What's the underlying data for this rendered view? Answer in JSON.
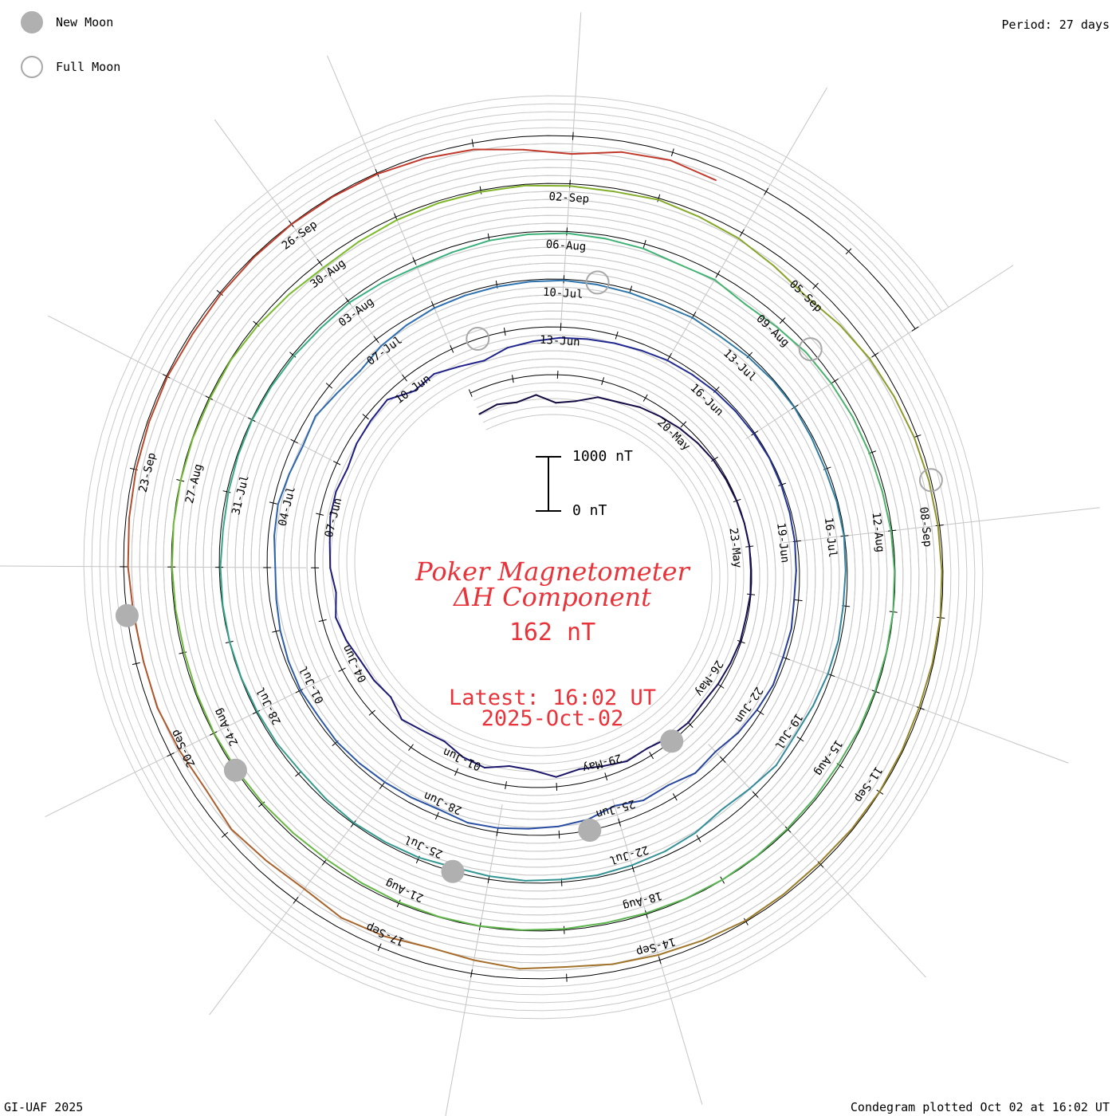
{
  "header": {
    "period": "Period: 27 days"
  },
  "legend": {
    "new_moon": {
      "label": "New Moon",
      "color": "#b0b0b0"
    },
    "full_moon": {
      "label": "Full Moon",
      "color": "#a8a8a8"
    }
  },
  "center": {
    "title_line1": "Poker Magnetometer",
    "title_line2": "ΔH Component",
    "current_value": "162 nT",
    "latest_line1": "Latest: 16:02 UT",
    "latest_line2": "2025-Oct-02",
    "text_color": "#e8333a"
  },
  "footer": {
    "credit": "GI-UAF 2025",
    "plotted": "Condegram plotted Oct 02 at 16:02 UT"
  },
  "chart_data": {
    "type": "line",
    "title": "Poker Magnetometer ΔH Component",
    "period_days": 27,
    "scale_bar": {
      "top_label": "1000 nT",
      "bottom_label": "0 nT",
      "range_nT": [
        0,
        1000
      ]
    },
    "spiral_start_date": "2025-05-15",
    "spiral_end_date": "2025-10-02",
    "rotations": [
      {
        "color": "#12083a",
        "dates": [
          "20-May",
          "23-May",
          "26-May",
          "29-May",
          "01-Jun",
          "04-Jun",
          "07-Jun"
        ]
      },
      {
        "color": "#1f1f8a",
        "dates": [
          "10-Jun",
          "13-Jun",
          "16-Jun",
          "19-Jun",
          "22-Jun",
          "25-Jun",
          "28-Jun",
          "01-Jul",
          "04-Jul"
        ]
      },
      {
        "color": "#2e6eb2",
        "dates": [
          "07-Jul",
          "10-Jul",
          "13-Jul",
          "16-Jul",
          "19-Jul",
          "22-Jul",
          "25-Jul",
          "28-Jul",
          "31-Jul"
        ]
      },
      {
        "color": "#38b07e",
        "dates": [
          "03-Aug",
          "06-Aug",
          "09-Aug",
          "12-Aug",
          "15-Aug",
          "18-Aug",
          "21-Aug",
          "24-Aug",
          "27-Aug"
        ]
      },
      {
        "color": "#7cbb2a",
        "dates": [
          "30-Aug",
          "02-Sep",
          "05-Sep",
          "08-Sep",
          "11-Sep",
          "14-Sep",
          "17-Sep",
          "20-Sep",
          "23-Sep"
        ]
      },
      {
        "color": "#c0392b",
        "dates": [
          "26-Sep"
        ]
      }
    ],
    "new_moon_dates": [
      "2025-05-27",
      "2025-06-25",
      "2025-07-24",
      "2025-08-23",
      "2025-09-21"
    ],
    "full_moon_dates": [
      "2025-06-11",
      "2025-07-10",
      "2025-08-09",
      "2025-09-07"
    ],
    "series": [
      {
        "name": "ΔH (nT)",
        "time_unit": "days since 2025-05-15",
        "points": [
          [
            0,
            -420
          ],
          [
            0.5,
            -380
          ],
          [
            1,
            -440
          ],
          [
            1.5,
            -360
          ],
          [
            2,
            -520
          ],
          [
            2.5,
            -460
          ],
          [
            3,
            -310
          ],
          [
            3.5,
            -280
          ],
          [
            4,
            -200
          ],
          [
            4.5,
            -150
          ],
          [
            5,
            -100
          ],
          [
            5.5,
            -60
          ],
          [
            6,
            -30
          ],
          [
            6.5,
            -20
          ],
          [
            7,
            -10
          ],
          [
            7.5,
            -5
          ],
          [
            8,
            0
          ],
          [
            8.5,
            -15
          ],
          [
            9,
            -10
          ],
          [
            9.5,
            -30
          ],
          [
            10,
            -20
          ],
          [
            10.5,
            -40
          ],
          [
            11,
            -60
          ],
          [
            11.5,
            -90
          ],
          [
            12,
            -50
          ],
          [
            12.5,
            -80
          ],
          [
            13,
            -150
          ],
          [
            13.5,
            -120
          ],
          [
            14,
            -200
          ],
          [
            14.5,
            -260
          ],
          [
            15,
            -180
          ],
          [
            15.5,
            -320
          ],
          [
            16,
            -360
          ],
          [
            16.5,
            -240
          ],
          [
            17,
            -300
          ],
          [
            17.5,
            -420
          ],
          [
            18,
            -380
          ],
          [
            18.5,
            -300
          ],
          [
            19,
            -450
          ],
          [
            19.5,
            -400
          ],
          [
            20,
            -380
          ],
          [
            20.5,
            -300
          ],
          [
            21,
            -250
          ],
          [
            21.5,
            -350
          ],
          [
            22,
            -280
          ],
          [
            22.5,
            -260
          ],
          [
            23,
            -200
          ],
          [
            23.5,
            -180
          ],
          [
            24,
            -220
          ],
          [
            24.5,
            -150
          ],
          [
            25,
            -120
          ],
          [
            25.5,
            -90
          ],
          [
            26,
            -300
          ],
          [
            26.5,
            -250
          ],
          [
            27,
            -350
          ],
          [
            27.5,
            -420
          ],
          [
            28,
            -300
          ],
          [
            28.5,
            -250
          ],
          [
            29,
            -200
          ],
          [
            29.5,
            -180
          ],
          [
            30,
            -150
          ],
          [
            30.5,
            -120
          ],
          [
            31,
            -80
          ],
          [
            31.5,
            -60
          ],
          [
            32,
            -40
          ],
          [
            32.5,
            -30
          ],
          [
            33,
            -20
          ],
          [
            33.5,
            -10
          ],
          [
            34,
            -20
          ],
          [
            34.5,
            -30
          ],
          [
            35,
            -40
          ],
          [
            35.5,
            -60
          ],
          [
            36,
            -80
          ],
          [
            36.5,
            -50
          ],
          [
            37,
            -60
          ],
          [
            37.5,
            -40
          ],
          [
            38,
            -80
          ],
          [
            38.5,
            -120
          ],
          [
            39,
            -200
          ],
          [
            39.5,
            -150
          ],
          [
            40,
            -250
          ],
          [
            40.5,
            -220
          ],
          [
            41,
            -320
          ],
          [
            41.5,
            -200
          ],
          [
            42,
            -150
          ],
          [
            42.5,
            -120
          ],
          [
            43,
            -80
          ],
          [
            43.5,
            -60
          ],
          [
            44,
            -120
          ],
          [
            44.5,
            -100
          ],
          [
            45,
            -80
          ],
          [
            45.5,
            -60
          ],
          [
            46,
            -40
          ],
          [
            46.5,
            -60
          ],
          [
            47,
            -30
          ],
          [
            47.5,
            -50
          ],
          [
            48,
            -80
          ],
          [
            48.5,
            -120
          ],
          [
            49,
            -150
          ],
          [
            49.5,
            -110
          ],
          [
            50,
            -90
          ],
          [
            50.5,
            -140
          ],
          [
            51,
            -180
          ],
          [
            51.5,
            -120
          ],
          [
            52,
            -200
          ],
          [
            52.5,
            -240
          ],
          [
            53,
            -150
          ],
          [
            53.5,
            -100
          ],
          [
            54,
            -60
          ],
          [
            54.5,
            -50
          ],
          [
            55,
            -40
          ],
          [
            55.5,
            -30
          ],
          [
            56,
            -20
          ],
          [
            56.5,
            -40
          ],
          [
            57,
            -60
          ],
          [
            57.5,
            -80
          ],
          [
            58,
            -50
          ],
          [
            58.5,
            -70
          ],
          [
            59,
            -40
          ],
          [
            59.5,
            -20
          ],
          [
            60,
            -10
          ],
          [
            60.5,
            -30
          ],
          [
            61,
            -40
          ],
          [
            61.5,
            -20
          ],
          [
            62,
            -10
          ],
          [
            62.5,
            -30
          ],
          [
            63,
            -50
          ],
          [
            63.5,
            -40
          ],
          [
            64,
            -60
          ],
          [
            64.5,
            -90
          ],
          [
            65,
            -120
          ],
          [
            65.5,
            -80
          ],
          [
            66,
            -150
          ],
          [
            66.5,
            -200
          ],
          [
            67,
            -120
          ],
          [
            67.5,
            -80
          ],
          [
            68,
            -60
          ],
          [
            68.5,
            -40
          ],
          [
            69,
            -50
          ],
          [
            69.5,
            -40
          ],
          [
            70,
            -60
          ],
          [
            70.5,
            -80
          ],
          [
            71,
            -40
          ],
          [
            71.5,
            -30
          ],
          [
            72,
            -20
          ],
          [
            72.5,
            -40
          ],
          [
            73,
            -60
          ],
          [
            73.5,
            -30
          ],
          [
            74,
            -20
          ],
          [
            74.5,
            -10
          ],
          [
            75,
            -5
          ],
          [
            75.5,
            -10
          ],
          [
            76,
            -20
          ],
          [
            76.5,
            -40
          ],
          [
            77,
            -30
          ],
          [
            77.5,
            -20
          ],
          [
            78,
            -10
          ],
          [
            78.5,
            -20
          ],
          [
            79,
            -30
          ],
          [
            79.5,
            -50
          ],
          [
            80,
            -40
          ],
          [
            80.5,
            -80
          ],
          [
            81,
            -120
          ],
          [
            81.5,
            -100
          ],
          [
            82,
            -60
          ],
          [
            82.5,
            -40
          ],
          [
            83,
            -30
          ],
          [
            83.5,
            -60
          ],
          [
            84,
            -90
          ],
          [
            84.5,
            -150
          ],
          [
            85,
            -120
          ],
          [
            85.5,
            -200
          ],
          [
            86,
            -160
          ],
          [
            86.5,
            -100
          ],
          [
            87,
            -80
          ],
          [
            87.5,
            -60
          ],
          [
            88,
            -50
          ],
          [
            88.5,
            -40
          ],
          [
            89,
            -20
          ],
          [
            89.5,
            -10
          ],
          [
            90,
            -5
          ],
          [
            90.5,
            -10
          ],
          [
            91,
            -15
          ],
          [
            91.5,
            -20
          ],
          [
            92,
            -40
          ],
          [
            92.5,
            -30
          ],
          [
            93,
            -20
          ],
          [
            93.5,
            -10
          ],
          [
            94,
            -5
          ],
          [
            94.5,
            -10
          ],
          [
            95,
            -20
          ],
          [
            95.5,
            -30
          ],
          [
            96,
            -20
          ],
          [
            96.5,
            -10
          ],
          [
            97,
            -5
          ],
          [
            97.5,
            -10
          ],
          [
            98,
            -20
          ],
          [
            98.5,
            -40
          ],
          [
            99,
            -60
          ],
          [
            99.5,
            -50
          ],
          [
            100,
            -30
          ],
          [
            100.5,
            -20
          ],
          [
            101,
            -10
          ],
          [
            101.5,
            -20
          ],
          [
            102,
            -30
          ],
          [
            102.5,
            -20
          ],
          [
            103,
            -10
          ],
          [
            103.5,
            -5
          ],
          [
            104,
            -5
          ],
          [
            104.5,
            -10
          ],
          [
            105,
            -20
          ],
          [
            105.5,
            -10
          ],
          [
            106,
            -40
          ],
          [
            106.5,
            -80
          ],
          [
            107,
            -120
          ],
          [
            107.5,
            -90
          ],
          [
            108,
            -60
          ],
          [
            108.5,
            -40
          ],
          [
            109,
            -30
          ],
          [
            109.5,
            -20
          ],
          [
            110,
            -40
          ],
          [
            110.5,
            -60
          ],
          [
            111,
            -30
          ],
          [
            111.5,
            -80
          ],
          [
            112,
            -120
          ],
          [
            112.5,
            -200
          ],
          [
            113,
            -260
          ],
          [
            113.5,
            -180
          ],
          [
            114,
            -120
          ],
          [
            114.5,
            -90
          ],
          [
            115,
            -60
          ],
          [
            115.5,
            -40
          ],
          [
            116,
            -30
          ],
          [
            116.5,
            -20
          ],
          [
            117,
            -10
          ],
          [
            117.5,
            -20
          ],
          [
            118,
            -30
          ],
          [
            118.5,
            -20
          ],
          [
            119,
            -10
          ],
          [
            119.5,
            -20
          ],
          [
            120,
            -40
          ],
          [
            120.5,
            -30
          ],
          [
            121,
            -20
          ],
          [
            121.5,
            -60
          ],
          [
            122,
            -100
          ],
          [
            122.5,
            -140
          ],
          [
            123,
            -200
          ],
          [
            123.5,
            -180
          ],
          [
            124,
            -250
          ],
          [
            124.5,
            -300
          ],
          [
            125,
            -220
          ],
          [
            125.5,
            -180
          ],
          [
            126,
            -260
          ],
          [
            126.5,
            -220
          ],
          [
            127,
            -160
          ],
          [
            127.5,
            -230
          ],
          [
            128,
            -180
          ],
          [
            128.5,
            -130
          ],
          [
            129,
            -140
          ],
          [
            129.5,
            -120
          ],
          [
            130,
            -80
          ],
          [
            130.5,
            -60
          ],
          [
            131,
            -40
          ],
          [
            131.5,
            -30
          ],
          [
            132,
            -20
          ],
          [
            132.5,
            -40
          ],
          [
            133,
            -30
          ],
          [
            133.5,
            -20
          ],
          [
            134,
            -10
          ],
          [
            134.5,
            -15
          ],
          [
            135,
            -20
          ],
          [
            135.5,
            -60
          ],
          [
            136,
            -120
          ],
          [
            136.5,
            -240
          ],
          [
            137,
            -330
          ],
          [
            137.5,
            -200
          ],
          [
            138,
            -150
          ],
          [
            138.5,
            -220
          ]
        ]
      }
    ]
  }
}
